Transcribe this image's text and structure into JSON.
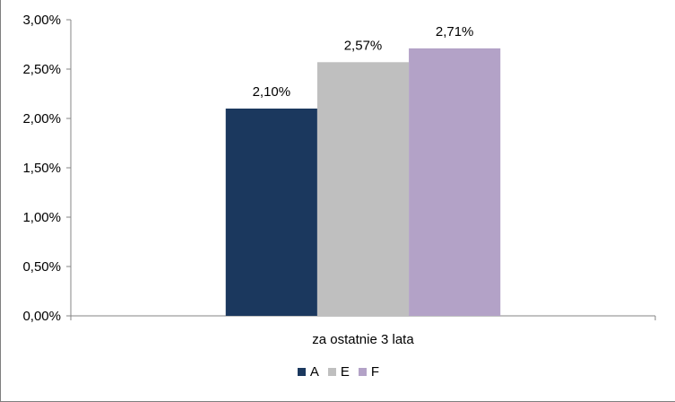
{
  "chart_data": {
    "type": "bar",
    "categories": [
      "za ostatnie 3 lata"
    ],
    "series": [
      {
        "name": "A",
        "values": [
          2.1
        ],
        "color": "#1b385e",
        "label": "2,10%"
      },
      {
        "name": "E",
        "values": [
          2.57
        ],
        "color": "#bfbfbf",
        "label": "2,57%"
      },
      {
        "name": "F",
        "values": [
          2.71
        ],
        "color": "#b3a2c7",
        "label": "2,71%"
      }
    ],
    "ylim": [
      0,
      3.0
    ],
    "yticks": [
      {
        "value": 0.0,
        "label": "0,00%"
      },
      {
        "value": 0.5,
        "label": "0,50%"
      },
      {
        "value": 1.0,
        "label": "1,00%"
      },
      {
        "value": 1.5,
        "label": "1,50%"
      },
      {
        "value": 2.0,
        "label": "2,00%"
      },
      {
        "value": 2.5,
        "label": "2,50%"
      },
      {
        "value": 3.0,
        "label": "3,00%"
      }
    ],
    "grid": false,
    "legend_position": "bottom"
  }
}
